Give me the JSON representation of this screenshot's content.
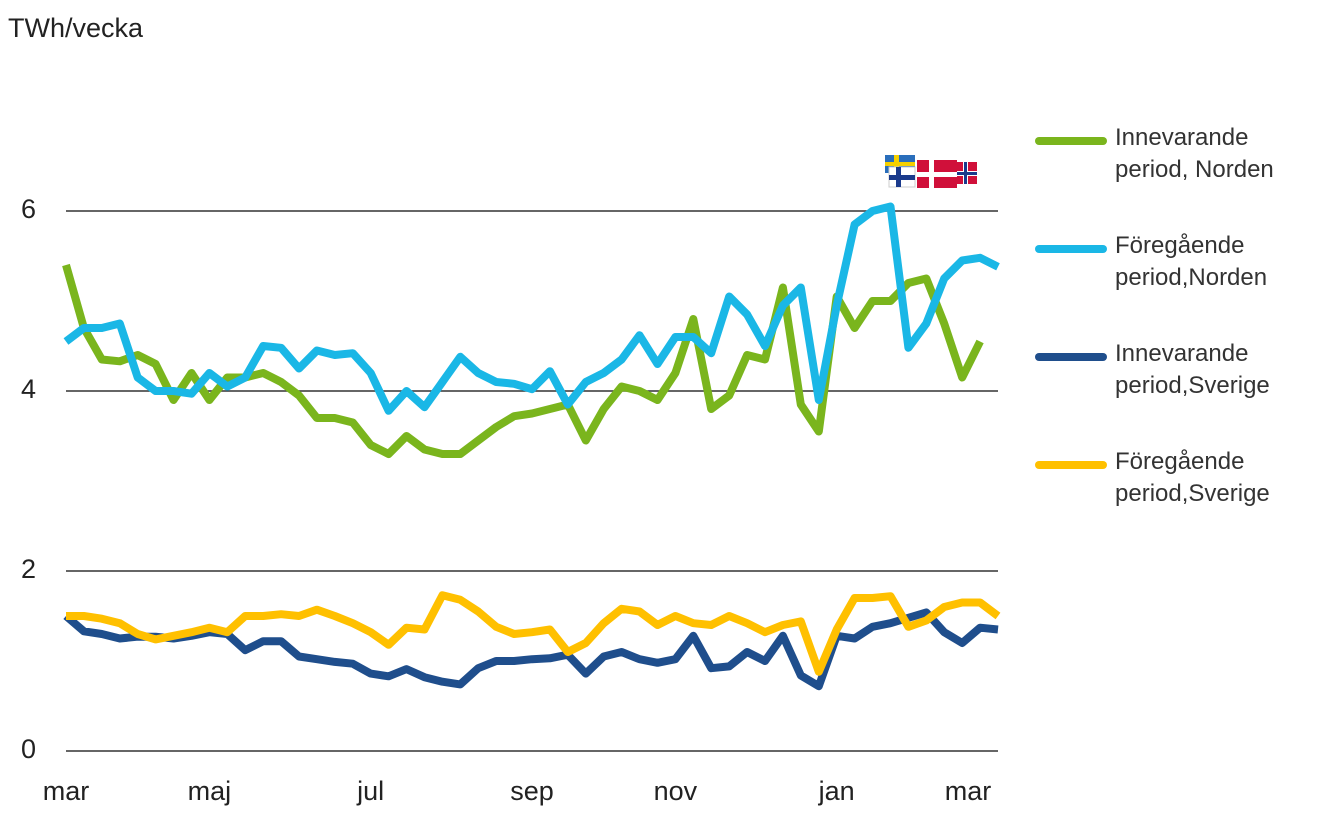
{
  "chart_data": {
    "type": "line",
    "ylabel": "TWh/vecka",
    "categories": [
      "mar",
      null,
      null,
      null,
      null,
      null,
      null,
      null,
      "maj",
      null,
      null,
      null,
      null,
      null,
      null,
      null,
      null,
      "jul",
      null,
      null,
      null,
      null,
      null,
      null,
      null,
      null,
      "sep",
      null,
      null,
      null,
      null,
      null,
      null,
      null,
      "nov",
      null,
      null,
      null,
      null,
      null,
      null,
      null,
      null,
      "jan",
      null,
      null,
      null,
      null,
      null,
      null,
      null,
      null,
      "mar"
    ],
    "ylim": [
      0,
      7
    ],
    "yticks": [
      0,
      2,
      4,
      6
    ],
    "grid": true,
    "series": [
      {
        "name": "Innevarande period, Norden",
        "color": "#7ab51d",
        "values": [
          5.4,
          4.7,
          4.35,
          4.33,
          4.4,
          4.3,
          3.9,
          4.2,
          3.9,
          4.15,
          4.15,
          4.2,
          4.1,
          3.95,
          3.7,
          3.7,
          3.65,
          3.4,
          3.3,
          3.5,
          3.35,
          3.3,
          3.3,
          3.45,
          3.6,
          3.72,
          3.75,
          3.8,
          3.85,
          3.45,
          3.8,
          4.05,
          4.0,
          3.9,
          4.2,
          4.8,
          3.8,
          3.95,
          4.4,
          4.35,
          5.15,
          3.85,
          3.55,
          5.05,
          4.7,
          5.0,
          5.0,
          5.2,
          5.25,
          4.75,
          4.15,
          4.55,
          null
        ]
      },
      {
        "name": "Föregående period,Norden",
        "color": "#1ab7e6",
        "values": [
          4.55,
          4.7,
          4.7,
          4.75,
          4.15,
          4.0,
          4.0,
          3.97,
          4.2,
          4.05,
          4.15,
          4.5,
          4.48,
          4.25,
          4.45,
          4.4,
          4.42,
          4.2,
          3.78,
          4.0,
          3.82,
          4.1,
          4.38,
          4.2,
          4.1,
          4.08,
          4.02,
          4.22,
          3.85,
          4.1,
          4.2,
          4.35,
          4.62,
          4.3,
          4.6,
          4.6,
          4.42,
          5.05,
          4.85,
          4.5,
          4.95,
          5.15,
          3.9,
          4.95,
          5.85,
          6.0,
          6.05,
          4.48,
          4.75,
          5.25,
          5.45,
          5.48,
          5.38
        ]
      },
      {
        "name": "Innevarande period,Sverige",
        "color": "#1f4e8c",
        "values": [
          1.5,
          1.33,
          1.3,
          1.25,
          1.27,
          1.27,
          1.25,
          1.28,
          1.32,
          1.3,
          1.12,
          1.22,
          1.22,
          1.05,
          1.02,
          0.99,
          0.97,
          0.86,
          0.83,
          0.91,
          0.82,
          0.77,
          0.74,
          0.92,
          1.0,
          1.0,
          1.02,
          1.03,
          1.07,
          0.86,
          1.05,
          1.1,
          1.02,
          0.98,
          1.02,
          1.28,
          0.92,
          0.94,
          1.1,
          1.0,
          1.28,
          0.84,
          0.72,
          1.28,
          1.25,
          1.38,
          1.42,
          1.48,
          1.54,
          1.32,
          1.2,
          1.37,
          1.35
        ]
      },
      {
        "name": "Föregående period,Sverige",
        "color": "#ffc000",
        "values": [
          1.5,
          1.5,
          1.47,
          1.42,
          1.3,
          1.24,
          1.28,
          1.32,
          1.37,
          1.32,
          1.5,
          1.5,
          1.52,
          1.5,
          1.57,
          1.5,
          1.42,
          1.32,
          1.18,
          1.37,
          1.35,
          1.73,
          1.68,
          1.55,
          1.38,
          1.3,
          1.32,
          1.35,
          1.1,
          1.2,
          1.42,
          1.58,
          1.55,
          1.4,
          1.5,
          1.42,
          1.4,
          1.5,
          1.42,
          1.32,
          1.4,
          1.44,
          0.88,
          1.35,
          1.7,
          1.7,
          1.72,
          1.38,
          1.45,
          1.6,
          1.65,
          1.65,
          1.5
        ]
      }
    ]
  }
}
